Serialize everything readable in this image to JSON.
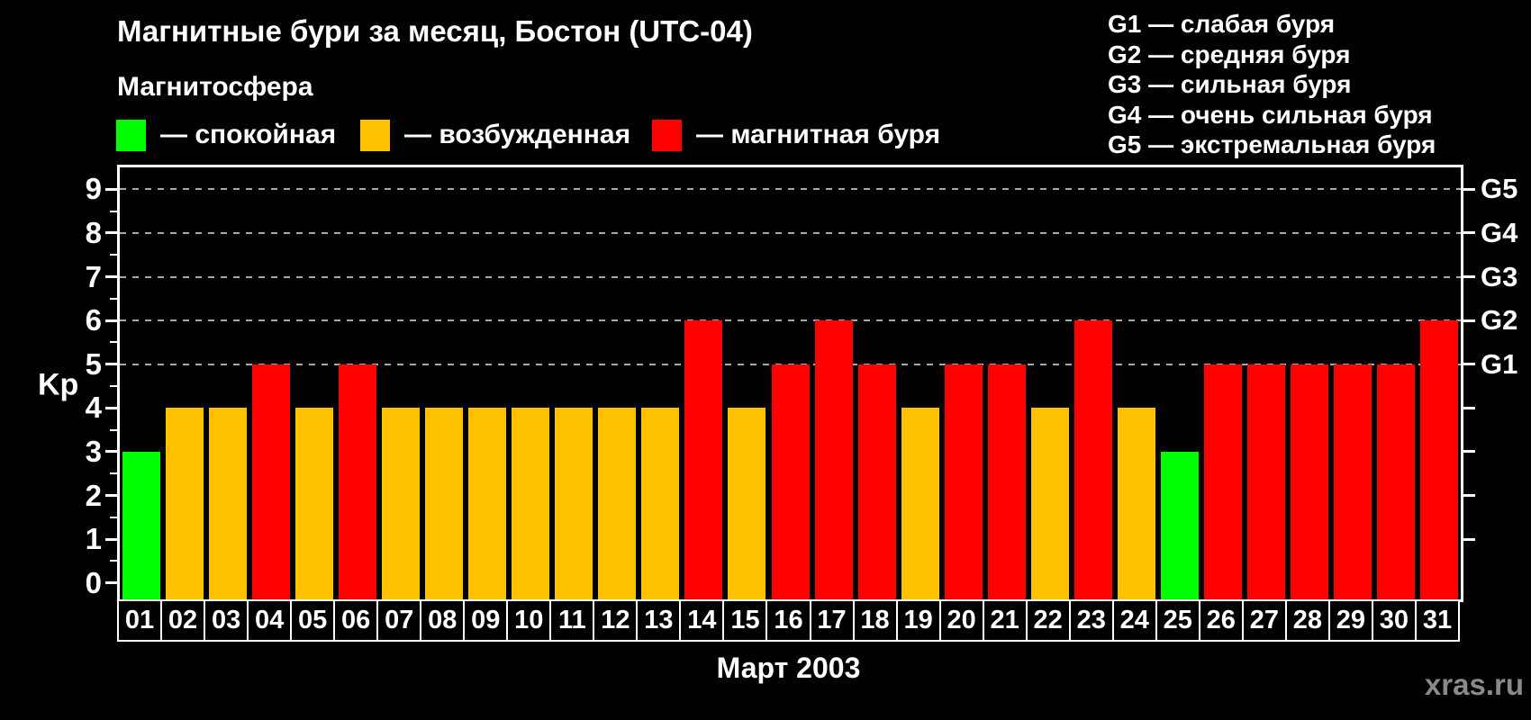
{
  "legend": {
    "heading": "Магнитосфера",
    "items": [
      {
        "state": "quiet",
        "label": "— спокойная",
        "color": "#00ff00"
      },
      {
        "state": "active",
        "label": "— возбужденная",
        "color": "#ffc000"
      },
      {
        "state": "storm",
        "label": "— магнитная буря",
        "color": "#ff0000"
      }
    ]
  },
  "g_scale": {
    "items": [
      "G1 — слабая буря",
      "G2 — средняя буря",
      "G3 — сильная буря",
      "G4 — очень сильная буря",
      "G5 — экстремальная буря"
    ]
  },
  "chart_data": {
    "type": "bar",
    "title": "Магнитные бури за месяц, Бостон (UTC-04)",
    "xlabel": "Март 2003",
    "ylabel": "Kp",
    "ylim": [
      -0.375,
      9.5
    ],
    "yticks": [
      0,
      1,
      2,
      3,
      4,
      5,
      6,
      7,
      8,
      9
    ],
    "yticks_minor": [
      0.5,
      1.5,
      2.5,
      3.5,
      4.5,
      5.5,
      6.5,
      7.5,
      8.5
    ],
    "grid_levels": [
      5,
      6,
      7,
      8,
      9
    ],
    "grid_on": true,
    "right_axis_labels": [
      {
        "level": 5,
        "label": "G1"
      },
      {
        "level": 6,
        "label": "G2"
      },
      {
        "level": 7,
        "label": "G3"
      },
      {
        "level": 8,
        "label": "G4"
      },
      {
        "level": 9,
        "label": "G5"
      }
    ],
    "categories": [
      "01",
      "02",
      "03",
      "04",
      "05",
      "06",
      "07",
      "08",
      "09",
      "10",
      "11",
      "12",
      "13",
      "14",
      "15",
      "16",
      "17",
      "18",
      "19",
      "20",
      "21",
      "22",
      "23",
      "24",
      "25",
      "26",
      "27",
      "28",
      "29",
      "30",
      "31"
    ],
    "values": [
      3,
      4,
      4,
      5,
      4,
      5,
      4,
      4,
      4,
      4,
      4,
      4,
      4,
      6,
      4,
      5,
      6,
      5,
      4,
      5,
      5,
      4,
      6,
      4,
      3,
      5,
      5,
      5,
      5,
      5,
      6
    ],
    "bar_states": [
      "quiet",
      "active",
      "active",
      "storm",
      "active",
      "storm",
      "active",
      "active",
      "active",
      "active",
      "active",
      "active",
      "active",
      "storm",
      "active",
      "storm",
      "storm",
      "storm",
      "active",
      "storm",
      "storm",
      "active",
      "storm",
      "active",
      "quiet",
      "storm",
      "storm",
      "storm",
      "storm",
      "storm",
      "storm"
    ],
    "colors_by_state": {
      "quiet": "#00ff00",
      "active": "#ffc000",
      "storm": "#ff0000"
    },
    "legend_position": "top-left"
  },
  "watermark": {
    "text": "xras.ru"
  }
}
